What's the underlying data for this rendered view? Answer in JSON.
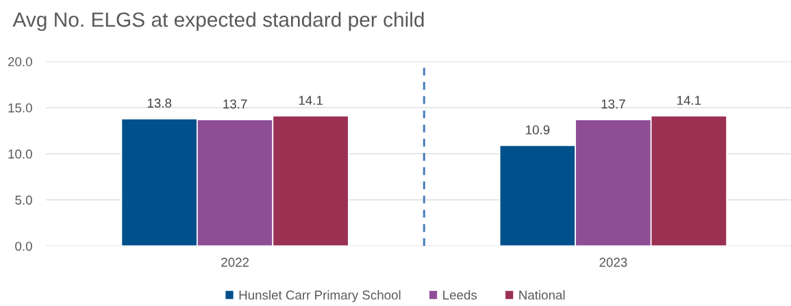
{
  "chart_data": {
    "type": "bar",
    "title": "Avg No. ELGS at expected standard per child",
    "categories": [
      "2022",
      "2023"
    ],
    "series": [
      {
        "name": "Hunslet Carr Primary School",
        "color": "#00508c",
        "values": [
          13.8,
          10.9
        ]
      },
      {
        "name": "Leeds",
        "color": "#8e4e96",
        "values": [
          13.7,
          13.7
        ]
      },
      {
        "name": "National",
        "color": "#9b3152",
        "values": [
          14.1,
          14.1
        ]
      }
    ],
    "ylim": [
      0,
      20
    ],
    "yticks": [
      {
        "value": 0,
        "label": "0.0"
      },
      {
        "value": 5,
        "label": "5.0"
      },
      {
        "value": 10,
        "label": "10.0"
      },
      {
        "value": 15,
        "label": "15.0"
      },
      {
        "value": 20,
        "label": "20.0"
      }
    ],
    "grid": "y",
    "legend": "bottom",
    "data_labels": true
  }
}
